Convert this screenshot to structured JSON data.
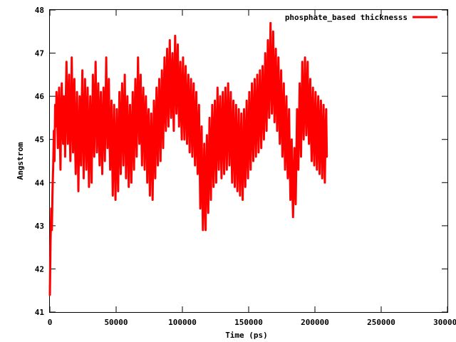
{
  "chart_data": {
    "type": "line",
    "xlabel": "Time (ps)",
    "ylabel": "Angstrom",
    "xlim": [
      0,
      300000
    ],
    "ylim": [
      41,
      48
    ],
    "x_ticks": [
      0,
      50000,
      100000,
      150000,
      200000,
      250000,
      300000
    ],
    "x_tick_labels": [
      "0",
      "50000",
      "100000",
      "150000",
      "200000",
      "250000",
      "300000"
    ],
    "y_ticks": [
      41,
      42,
      43,
      44,
      45,
      46,
      47,
      48
    ],
    "y_tick_labels": [
      "41",
      "42",
      "43",
      "44",
      "45",
      "46",
      "47",
      "48"
    ],
    "legend": {
      "position": "top-right"
    },
    "grid": false,
    "series": [
      {
        "name": "phosphate_based thicknesss",
        "color": "#ff0000",
        "x_start": 0,
        "x_step": 500,
        "values": [
          41.4,
          42.6,
          43.4,
          42.9,
          43.8,
          44.4,
          45.2,
          44.5,
          45.8,
          45.3,
          46.1,
          45.6,
          44.8,
          45.7,
          46.2,
          45.1,
          44.3,
          45.6,
          46.3,
          45.4,
          44.9,
          46.0,
          45.5,
          44.6,
          45.9,
          46.8,
          45.7,
          44.9,
          45.8,
          46.5,
          45.2,
          44.5,
          45.6,
          46.9,
          45.8,
          44.7,
          45.9,
          46.4,
          45.0,
          44.2,
          45.3,
          46.1,
          45.0,
          43.8,
          44.9,
          46.0,
          45.1,
          44.4,
          45.7,
          46.6,
          45.3,
          44.1,
          45.2,
          46.4,
          45.5,
          44.3,
          45.4,
          46.2,
          45.0,
          43.9,
          45.1,
          46.0,
          44.8,
          44.0,
          45.3,
          46.5,
          45.4,
          44.6,
          45.9,
          46.8,
          45.6,
          44.7,
          45.5,
          46.3,
          45.2,
          44.4,
          45.6,
          46.1,
          45.0,
          44.2,
          45.4,
          46.2,
          45.3,
          44.5,
          45.7,
          46.9,
          45.6,
          44.8,
          45.8,
          46.4,
          45.1,
          44.3,
          45.2,
          45.9,
          44.7,
          43.7,
          44.9,
          45.8,
          44.6,
          43.6,
          44.8,
          45.7,
          44.5,
          43.8,
          45.0,
          46.1,
          45.0,
          44.2,
          45.5,
          46.3,
          45.2,
          44.4,
          45.6,
          46.5,
          45.3,
          44.1,
          45.2,
          46.0,
          44.9,
          43.9,
          45.1,
          45.8,
          44.7,
          44.0,
          45.2,
          46.1,
          45.0,
          44.3,
          45.5,
          46.4,
          45.4,
          44.6,
          45.7,
          46.9,
          45.8,
          44.9,
          45.8,
          46.5,
          45.3,
          44.4,
          45.5,
          46.2,
          45.2,
          44.3,
          45.4,
          46.0,
          45.1,
          44.0,
          45.2,
          45.7,
          44.6,
          43.7,
          44.9,
          45.6,
          44.5,
          43.6,
          44.8,
          45.9,
          44.9,
          44.1,
          45.3,
          46.2,
          45.2,
          44.4,
          45.6,
          46.4,
          45.3,
          44.5,
          45.6,
          46.6,
          45.6,
          44.8,
          46.0,
          46.9,
          45.9,
          45.2,
          46.3,
          47.1,
          46.0,
          45.3,
          46.4,
          47.3,
          46.2,
          45.5,
          46.5,
          47.0,
          45.9,
          45.2,
          46.3,
          47.4,
          46.4,
          45.6,
          46.6,
          47.2,
          46.1,
          45.3,
          46.2,
          46.8,
          45.7,
          45.0,
          46.1,
          46.9,
          45.8,
          45.0,
          46.0,
          46.7,
          45.6,
          44.9,
          45.9,
          46.5,
          45.4,
          44.7,
          45.8,
          46.4,
          45.3,
          44.6,
          45.7,
          46.3,
          45.2,
          44.4,
          45.5,
          46.1,
          45.0,
          44.2,
          45.2,
          45.8,
          44.6,
          43.4,
          44.4,
          45.3,
          43.9,
          42.9,
          43.8,
          44.9,
          43.6,
          42.9,
          44.2,
          45.1,
          44.0,
          43.3,
          44.5,
          45.5,
          44.4,
          43.6,
          44.8,
          45.8,
          44.7,
          43.9,
          45.0,
          45.9,
          44.8,
          44.0,
          45.2,
          46.2,
          45.1,
          44.3,
          45.4,
          46.0,
          44.9,
          44.1,
          45.3,
          46.1,
          45.0,
          44.2,
          45.4,
          46.2,
          45.1,
          44.3,
          45.5,
          46.3,
          45.2,
          44.4,
          45.5,
          46.1,
          45.0,
          44.0,
          45.1,
          45.9,
          44.8,
          43.9,
          45.0,
          45.8,
          44.6,
          43.8,
          44.9,
          45.7,
          44.5,
          43.7,
          44.8,
          45.6,
          44.4,
          43.6,
          44.7,
          45.7,
          44.6,
          43.9,
          45.0,
          45.9,
          44.8,
          44.1,
          45.2,
          46.1,
          45.0,
          44.3,
          45.4,
          46.3,
          45.2,
          44.5,
          45.6,
          46.4,
          45.3,
          44.6,
          45.7,
          46.5,
          45.4,
          44.7,
          45.8,
          46.6,
          45.5,
          44.8,
          45.9,
          46.7,
          45.6,
          45.0,
          46.1,
          47.0,
          45.9,
          45.2,
          46.3,
          47.3,
          46.2,
          45.5,
          46.6,
          47.7,
          46.4,
          45.6,
          46.5,
          47.5,
          46.3,
          45.4,
          46.3,
          47.1,
          46.0,
          45.2,
          46.2,
          46.9,
          45.7,
          44.9,
          45.9,
          46.6,
          45.4,
          44.6,
          45.5,
          46.3,
          45.1,
          44.3,
          45.2,
          46.0,
          44.8,
          44.1,
          45.0,
          45.7,
          44.5,
          43.6,
          44.5,
          45.0,
          43.8,
          43.2,
          44.0,
          44.8,
          44.0,
          43.5,
          44.6,
          45.7,
          44.9,
          44.3,
          45.4,
          46.3,
          45.3,
          44.6,
          45.8,
          46.8,
          45.7,
          45.0,
          46.0,
          46.9,
          45.8,
          45.1,
          46.1,
          46.8,
          45.6,
          44.9,
          45.9,
          46.4,
          45.2,
          44.5,
          45.6,
          46.2,
          45.0,
          44.4,
          45.5,
          46.1,
          45.0,
          44.3,
          45.4,
          46.0,
          44.9,
          44.2,
          45.3,
          45.9,
          44.8,
          44.1,
          45.2,
          45.8,
          44.7,
          44.0,
          45.1,
          45.7,
          44.6
        ]
      }
    ]
  }
}
